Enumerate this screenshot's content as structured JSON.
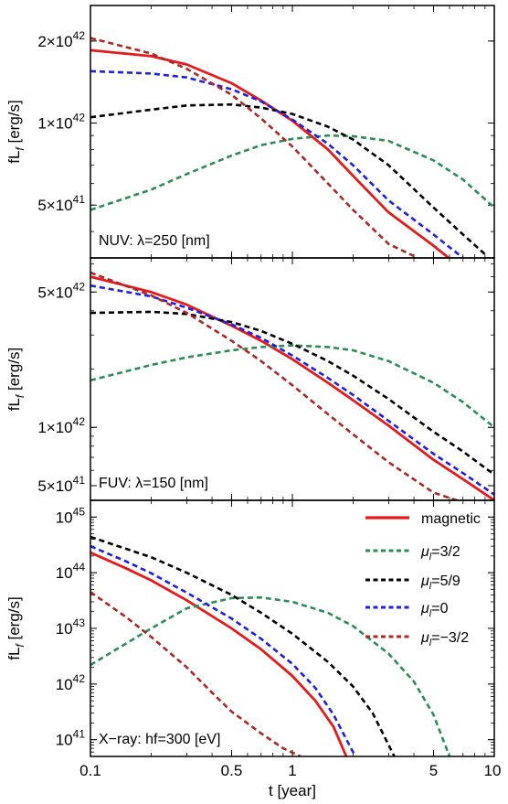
{
  "figure": {
    "xlabel": "t [year]",
    "xticks": [
      {
        "v": 0.1,
        "label": "0.1"
      },
      {
        "v": 0.5,
        "label": "0.5"
      },
      {
        "v": 1,
        "label": "1"
      },
      {
        "v": 5,
        "label": "5"
      },
      {
        "v": 10,
        "label": "10"
      }
    ],
    "legend": [
      {
        "key": "magnetic",
        "label": "magnetic",
        "color": "#e41a1c",
        "dashed": false
      },
      {
        "key": "p32",
        "mu": "3/2",
        "color": "#2e8b57",
        "dashed": true
      },
      {
        "key": "p59",
        "mu": "5/9",
        "color": "#000000",
        "dashed": true
      },
      {
        "key": "zero",
        "mu": "0",
        "color": "#1f1fe0",
        "dashed": true
      },
      {
        "key": "m32",
        "mu": "−3/2",
        "color": "#a52a2a",
        "dashed": true
      }
    ]
  },
  "chart_data": [
    {
      "type": "line",
      "panel_label": "NUV: λ=250 [nm]",
      "ylabel": "fL_f [erg/s]",
      "xscale": "log",
      "yscale": "log",
      "xlim": [
        0.1,
        10
      ],
      "ylim": [
        3.2e+41,
        2.7e+42
      ],
      "yticks": [
        {
          "v": 5e+41,
          "m": "5",
          "e": "41"
        },
        {
          "v": 1e+42,
          "m": "1",
          "e": "42"
        },
        {
          "v": 2e+42,
          "m": "2",
          "e": "42"
        }
      ],
      "series": [
        {
          "key": "magnetic",
          "x": [
            0.1,
            0.2,
            0.3,
            0.5,
            0.7,
            1.0,
            1.5,
            2.0,
            3.0,
            5.0,
            7.0
          ],
          "y": [
            1.85e+42,
            1.76e+42,
            1.64e+42,
            1.4e+42,
            1.21e+42,
            1.02e+42,
            8e+41,
            6.4e+41,
            4.7e+41,
            3.55e+41,
            2.9e+41
          ]
        },
        {
          "key": "p32",
          "x": [
            0.1,
            0.2,
            0.3,
            0.5,
            0.7,
            1.0,
            1.5,
            2.0,
            3.0,
            5.0,
            7.0,
            10.0
          ],
          "y": [
            4.8e+41,
            5.7e+41,
            6.5e+41,
            7.6e+41,
            8.3e+41,
            8.75e+41,
            9e+41,
            8.95e+41,
            8.6e+41,
            7.3e+41,
            6.2e+41,
            4.9e+41
          ]
        },
        {
          "key": "p59",
          "x": [
            0.1,
            0.2,
            0.3,
            0.5,
            0.7,
            1.0,
            1.5,
            2.0,
            3.0,
            5.0,
            7.0,
            9.0
          ],
          "y": [
            1.05e+42,
            1.12e+42,
            1.16e+42,
            1.17e+42,
            1.14e+42,
            1.08e+42,
            9.7e+41,
            8.7e+41,
            7e+41,
            4.9e+41,
            3.9e+41,
            3.3e+41
          ]
        },
        {
          "key": "zero",
          "x": [
            0.1,
            0.2,
            0.3,
            0.5,
            0.7,
            1.0,
            1.5,
            2.0,
            3.0,
            5.0,
            7.0
          ],
          "y": [
            1.55e+42,
            1.52e+42,
            1.47e+42,
            1.33e+42,
            1.2e+42,
            1.03e+42,
            8.4e+41,
            7e+41,
            5.2e+41,
            3.9e+41,
            3.2e+41
          ]
        },
        {
          "key": "m32",
          "x": [
            0.1,
            0.2,
            0.3,
            0.5,
            0.7,
            1.0,
            1.5,
            2.0,
            3.0,
            4.0
          ],
          "y": [
            2.05e+42,
            1.8e+42,
            1.58e+42,
            1.27e+42,
            1.04e+42,
            8.2e+41,
            6e+41,
            4.8e+41,
            3.6e+41,
            3.25e+41
          ]
        }
      ]
    },
    {
      "type": "line",
      "panel_label": "FUV: λ=150 [nm]",
      "ylabel": "fL_f [erg/s]",
      "xscale": "log",
      "yscale": "log",
      "xlim": [
        0.1,
        10
      ],
      "ylim": [
        4.2e+41,
        7.5e+42
      ],
      "yticks": [
        {
          "v": 5e+41,
          "m": "5",
          "e": "41"
        },
        {
          "v": 1e+42,
          "m": "1",
          "e": "42"
        },
        {
          "v": 5e+42,
          "m": "5",
          "e": "42"
        }
      ],
      "series": [
        {
          "key": "magnetic",
          "x": [
            0.1,
            0.2,
            0.3,
            0.5,
            0.7,
            1.0,
            1.5,
            2.0,
            3.0,
            5.0,
            7.0,
            10.0
          ],
          "y": [
            6e+42,
            5e+42,
            4.3e+42,
            3.35e+42,
            2.8e+42,
            2.25e+42,
            1.7e+42,
            1.38e+42,
            1.02e+42,
            6.8e+41,
            5.4e+41,
            4.2e+41
          ]
        },
        {
          "key": "p32",
          "x": [
            0.1,
            0.2,
            0.3,
            0.5,
            0.7,
            1.0,
            1.5,
            2.0,
            3.0,
            5.0,
            7.0,
            10.0
          ],
          "y": [
            1.75e+42,
            2.1e+42,
            2.3e+42,
            2.5e+42,
            2.6e+42,
            2.65e+42,
            2.6e+42,
            2.5e+42,
            2.2e+42,
            1.7e+42,
            1.35e+42,
            1e+42
          ]
        },
        {
          "key": "p59",
          "x": [
            0.1,
            0.2,
            0.3,
            0.5,
            0.7,
            1.0,
            1.5,
            2.0,
            3.0,
            5.0,
            7.0,
            10.0
          ],
          "y": [
            3.9e+42,
            3.95e+42,
            3.85e+42,
            3.5e+42,
            3.15e+42,
            2.7e+42,
            2.2e+42,
            1.85e+42,
            1.4e+42,
            9.5e+41,
            7.5e+41,
            5.7e+41
          ]
        },
        {
          "key": "zero",
          "x": [
            0.1,
            0.2,
            0.3,
            0.5,
            0.7,
            1.0,
            1.5,
            2.0,
            3.0,
            5.0,
            7.0,
            10.0
          ],
          "y": [
            5.4e+42,
            4.75e+42,
            4.15e+42,
            3.4e+42,
            2.9e+42,
            2.35e+42,
            1.8e+42,
            1.47e+42,
            1.08e+42,
            7.3e+41,
            5.8e+41,
            4.5e+41
          ]
        },
        {
          "key": "m32",
          "x": [
            0.1,
            0.2,
            0.3,
            0.5,
            0.7,
            1.0,
            1.5,
            2.0,
            3.0,
            5.0,
            7.0
          ],
          "y": [
            6.3e+42,
            4.8e+42,
            3.9e+42,
            2.8e+42,
            2.2e+42,
            1.65e+42,
            1.17e+42,
            9.2e+41,
            6.6e+41,
            4.6e+41,
            4.1e+41
          ]
        }
      ]
    },
    {
      "type": "line",
      "panel_label": "X−ray: hf=300 [eV]",
      "ylabel": "fL_f [erg/s]",
      "xscale": "log",
      "yscale": "log",
      "xlim": [
        0.1,
        10
      ],
      "ylim": [
        5e+40,
        2e+45
      ],
      "yticks": [
        {
          "v": 1e+41,
          "m": "",
          "e": "41"
        },
        {
          "v": 1e+42,
          "m": "",
          "e": "42"
        },
        {
          "v": 1e+43,
          "m": "",
          "e": "43"
        },
        {
          "v": 1e+44,
          "m": "",
          "e": "44"
        },
        {
          "v": 1e+45,
          "m": "",
          "e": "45"
        }
      ],
      "series": [
        {
          "key": "magnetic",
          "x": [
            0.1,
            0.15,
            0.2,
            0.3,
            0.5,
            0.7,
            1.0,
            1.3,
            1.6,
            1.85
          ],
          "y": [
            2.3e+44,
            1.2e+44,
            7.3e+43,
            3.2e+43,
            1e+43,
            4.2e+42,
            1.4e+42,
            5e+41,
            1.7e+41,
            5e+40
          ]
        },
        {
          "key": "p32",
          "x": [
            0.1,
            0.2,
            0.3,
            0.5,
            0.7,
            1.0,
            1.5,
            2.0,
            3.0,
            4.0,
            5.0,
            6.0
          ],
          "y": [
            2.2e+42,
            1e+43,
            2.3e+43,
            3.5e+43,
            3.6e+43,
            3e+43,
            1.9e+43,
            1.1e+43,
            3.5e+42,
            1.1e+42,
            2.8e+41,
            5e+40
          ]
        },
        {
          "key": "p59",
          "x": [
            0.1,
            0.2,
            0.3,
            0.5,
            0.7,
            1.0,
            1.5,
            2.0,
            2.5,
            3.2
          ],
          "y": [
            4.4e+44,
            1.9e+44,
            1e+44,
            4e+43,
            1.9e+43,
            8e+42,
            2.5e+42,
            9e+41,
            3e+41,
            5e+40
          ]
        },
        {
          "key": "zero",
          "x": [
            0.1,
            0.15,
            0.2,
            0.3,
            0.5,
            0.7,
            1.0,
            1.3,
            1.6,
            2.05
          ],
          "y": [
            3e+44,
            1.6e+44,
            9.8e+43,
            4.4e+43,
            1.5e+43,
            6.5e+42,
            2.3e+42,
            8.5e+41,
            2.8e+41,
            5e+40
          ]
        },
        {
          "key": "m32",
          "x": [
            0.1,
            0.15,
            0.2,
            0.3,
            0.4,
            0.5,
            0.7,
            0.9,
            1.1
          ],
          "y": [
            4.5e+43,
            1.6e+43,
            7e+42,
            2e+42,
            7e+41,
            3.2e+41,
            1.3e+41,
            7e+40,
            5e+40
          ]
        }
      ]
    }
  ]
}
